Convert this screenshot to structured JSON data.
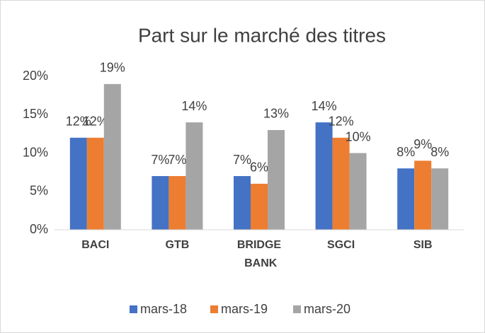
{
  "chart_data": {
    "type": "bar",
    "title": "Part sur le marché des titres",
    "categories": [
      "BACI",
      "GTB",
      "BRIDGE BANK",
      "SGCI",
      "SIB"
    ],
    "series": [
      {
        "name": "mars-18",
        "color": "#4472c4",
        "values": [
          12,
          7,
          7,
          14,
          8
        ],
        "value_labels": [
          "12%",
          "7%",
          "7%",
          "14%",
          "8%"
        ]
      },
      {
        "name": "mars-19",
        "color": "#ed7d31",
        "values": [
          12,
          7,
          6,
          12,
          9
        ],
        "value_labels": [
          "12%",
          "7%",
          "6%",
          "12%",
          "9%"
        ]
      },
      {
        "name": "mars-20",
        "color": "#a5a5a5",
        "values": [
          19,
          14,
          13,
          10,
          8
        ],
        "value_labels": [
          "19%",
          "14%",
          "13%",
          "10%",
          "8%"
        ]
      }
    ],
    "ylim": [
      0,
      20
    ],
    "yticks": [
      {
        "value": 0,
        "label": "0%"
      },
      {
        "value": 5,
        "label": "5%"
      },
      {
        "value": 10,
        "label": "10%"
      },
      {
        "value": 15,
        "label": "15%"
      },
      {
        "value": 20,
        "label": "20%"
      }
    ],
    "grid": false,
    "legend": "bottom"
  }
}
